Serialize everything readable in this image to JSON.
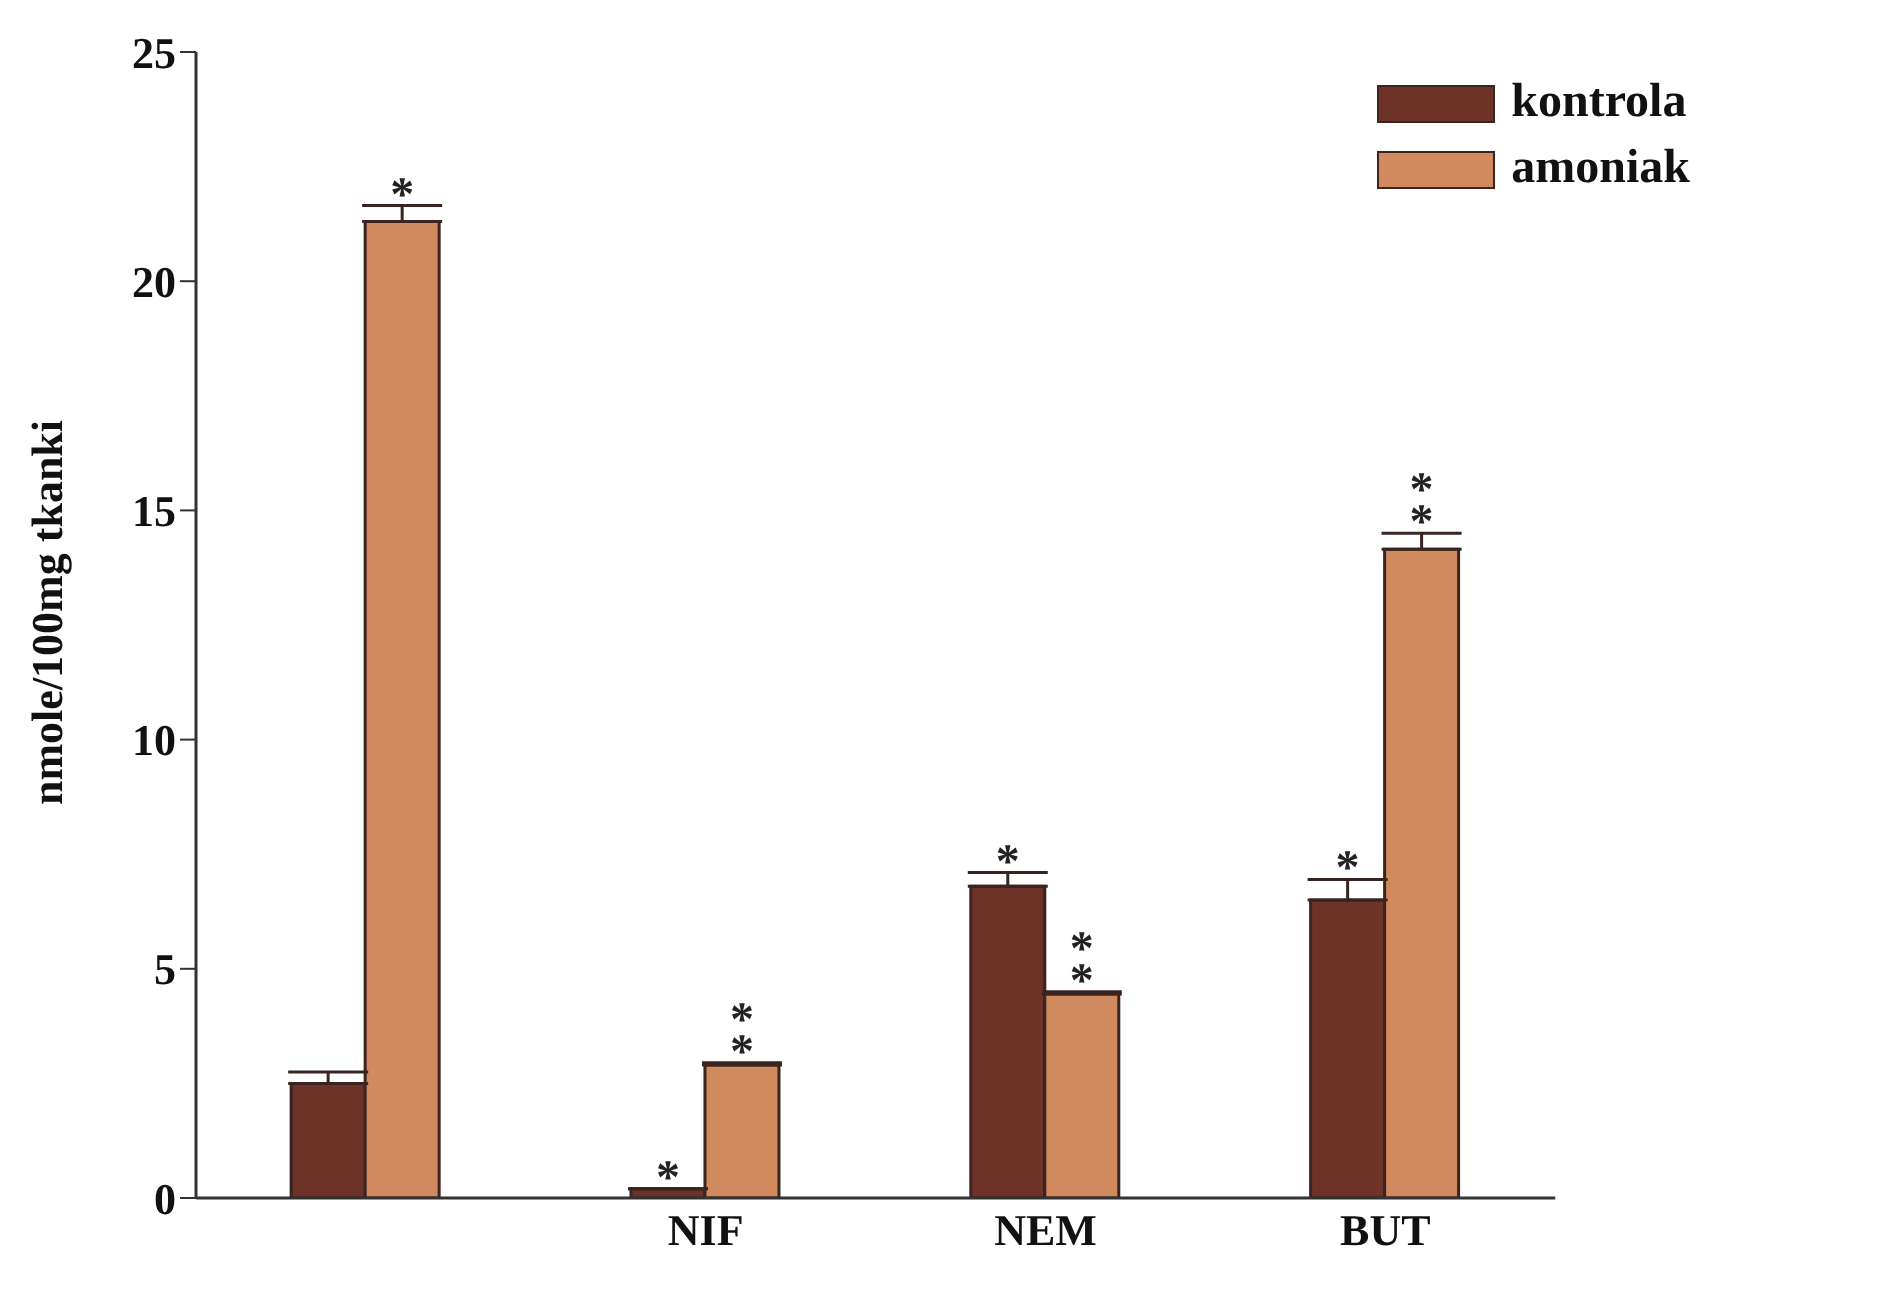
{
  "chart_data": {
    "type": "bar",
    "ylabel": "nmole/100mg tkanki",
    "categories": [
      null,
      "NIF",
      "NEM",
      "BUT"
    ],
    "series": [
      {
        "name": "kontrola",
        "color": "#6e3328",
        "values": [
          2.5,
          0.2,
          6.8,
          6.5
        ],
        "errors": [
          0.25,
          null,
          0.3,
          0.45
        ],
        "value_labels": [
          null,
          "*",
          "*",
          "*"
        ]
      },
      {
        "name": "amoniak",
        "color": "#d18a5e",
        "values": [
          21.3,
          2.9,
          4.45,
          14.15
        ],
        "errors": [
          0.35,
          0.05,
          0.05,
          0.35
        ],
        "value_labels": [
          "*",
          "**",
          "**",
          "**"
        ]
      }
    ],
    "ylim": [
      0,
      25
    ],
    "yticks": [
      0,
      5,
      10,
      15,
      20,
      25
    ],
    "grid": false,
    "legend": "top right"
  }
}
